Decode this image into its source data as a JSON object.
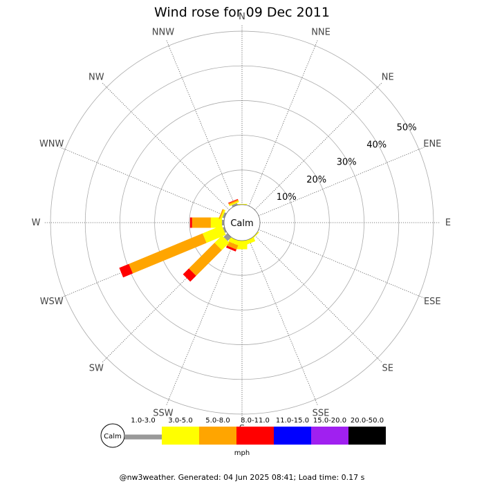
{
  "title": "Wind rose for 09 Dec 2011",
  "footer": "@nw3weather. Generated: 04 Jun 2025 08:41; Load time: 0.17 s",
  "calm_label": "Calm",
  "unit_label": "mph",
  "chart_data": {
    "type": "wind-rose",
    "directions": [
      "N",
      "NNE",
      "NE",
      "ENE",
      "E",
      "ESE",
      "SE",
      "SSE",
      "S",
      "SSW",
      "SW",
      "WSW",
      "W",
      "WNW",
      "NW",
      "NNW"
    ],
    "radial_ticks": [
      "10%",
      "20%",
      "30%",
      "40%",
      "50%"
    ],
    "radial_tick_values": [
      10,
      20,
      30,
      40,
      50
    ],
    "r_max": 52,
    "speed_bins": [
      {
        "label": "1.0-3.0",
        "color": "#999999"
      },
      {
        "label": "3.0-5.0",
        "color": "#ffff00"
      },
      {
        "label": "5.0-8.0",
        "color": "#ffa500"
      },
      {
        "label": "8.0-11.0",
        "color": "#ff0000"
      },
      {
        "label": "11.0-15.0",
        "color": "#0000ff"
      },
      {
        "label": "15.0-20.0",
        "color": "#a020f0"
      },
      {
        "label": "20.0-50.0",
        "color": "#000000"
      }
    ],
    "series": [
      {
        "direction": "N",
        "values": [
          0,
          0.2,
          0,
          0,
          0,
          0,
          0
        ]
      },
      {
        "direction": "NNE",
        "values": [
          0,
          0,
          0,
          0,
          0,
          0,
          0
        ]
      },
      {
        "direction": "NE",
        "values": [
          0,
          0,
          0,
          0,
          0,
          0,
          0
        ]
      },
      {
        "direction": "ENE",
        "values": [
          0,
          0,
          0,
          0,
          0,
          0,
          0
        ]
      },
      {
        "direction": "E",
        "values": [
          0,
          0,
          0,
          0,
          0,
          0,
          0
        ]
      },
      {
        "direction": "ESE",
        "values": [
          0,
          0,
          0,
          0,
          0,
          0,
          0
        ]
      },
      {
        "direction": "SE",
        "values": [
          0,
          0.3,
          0,
          0,
          0,
          0,
          0
        ]
      },
      {
        "direction": "SSE",
        "values": [
          0,
          1.2,
          0,
          0,
          0,
          0,
          0
        ]
      },
      {
        "direction": "S",
        "values": [
          0,
          2.5,
          0,
          0,
          0,
          0,
          0
        ]
      },
      {
        "direction": "SSW",
        "values": [
          0,
          1.3,
          1.3,
          0.6,
          0,
          0,
          0
        ]
      },
      {
        "direction": "SW",
        "values": [
          1.5,
          3.0,
          10.5,
          2.4,
          0,
          0,
          0
        ]
      },
      {
        "direction": "WSW",
        "values": [
          0.5,
          6.0,
          23.0,
          3.0,
          0,
          0,
          0
        ]
      },
      {
        "direction": "W",
        "values": [
          0.6,
          3.2,
          5.4,
          0.6,
          0,
          0,
          0
        ]
      },
      {
        "direction": "WNW",
        "values": [
          0.6,
          0.5,
          0.4,
          0,
          0,
          0,
          0
        ]
      },
      {
        "direction": "NW",
        "values": [
          0,
          0,
          0,
          0,
          0,
          0,
          0
        ]
      },
      {
        "direction": "NNW",
        "values": [
          0.6,
          0.4,
          0.4,
          0.2,
          0,
          0,
          0
        ]
      }
    ]
  }
}
